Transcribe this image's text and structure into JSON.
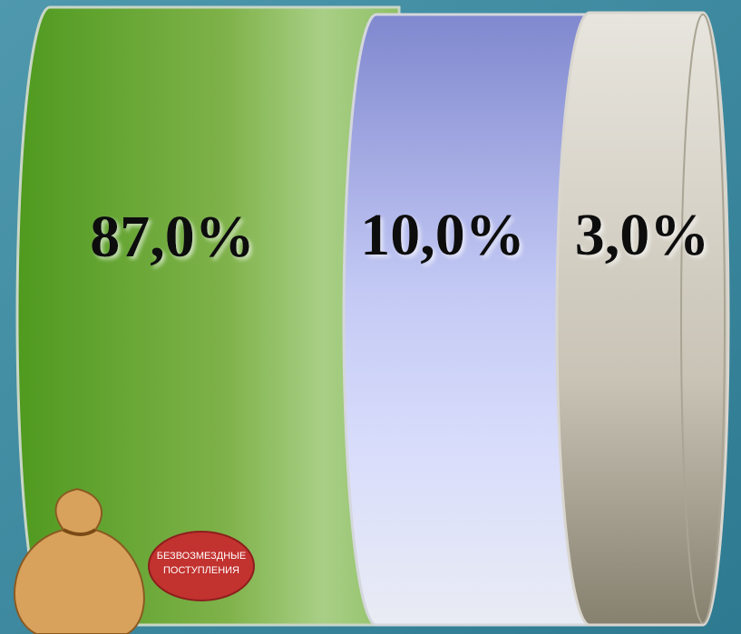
{
  "segments": [
    {
      "label": "87,0%"
    },
    {
      "label": "10,0%"
    },
    {
      "label": "3,0%"
    }
  ],
  "badge": {
    "lines": [
      "БЕЗВОЗМЕЗДНЫЕ",
      "ПОСТУПЛЕНИЯ"
    ]
  }
}
